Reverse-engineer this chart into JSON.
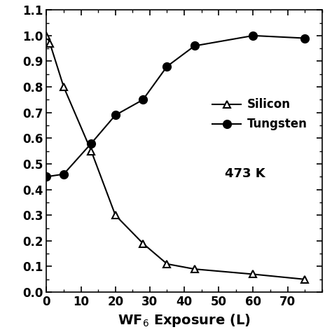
{
  "silicon_x": [
    0,
    1,
    5,
    13,
    20,
    28,
    35,
    43,
    60,
    75
  ],
  "silicon_y": [
    1.0,
    0.97,
    0.8,
    0.55,
    0.3,
    0.19,
    0.11,
    0.09,
    0.07,
    0.05
  ],
  "tungsten_x": [
    0,
    5,
    13,
    20,
    28,
    35,
    43,
    60,
    75
  ],
  "tungsten_y": [
    0.45,
    0.46,
    0.58,
    0.69,
    0.75,
    0.88,
    0.96,
    1.0,
    0.99
  ],
  "xlabel": "WF$_6$ Exposure (L)",
  "xlim": [
    0,
    80
  ],
  "ylim": [
    0.0,
    1.1
  ],
  "yticks": [
    0.0,
    0.1,
    0.2,
    0.3,
    0.4,
    0.5,
    0.6,
    0.7,
    0.8,
    0.9,
    1.0,
    1.1
  ],
  "xticks": [
    0,
    10,
    20,
    30,
    40,
    50,
    60,
    70
  ],
  "annotation": "473 K",
  "legend_silicon": "Silicon",
  "legend_tungsten": "Tungsten",
  "line_color": "#000000",
  "background_color": "#ffffff"
}
